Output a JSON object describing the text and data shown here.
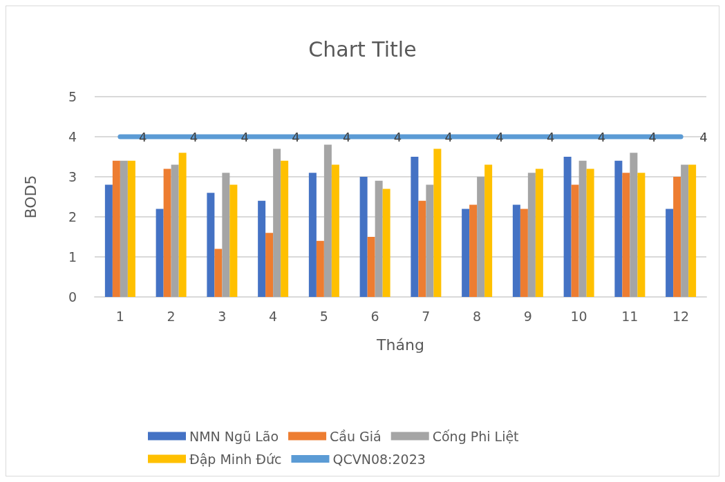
{
  "chart_data": {
    "type": "bar",
    "title": "Chart Title",
    "xlabel": "Tháng",
    "ylabel": "BOD5",
    "categories": [
      "1",
      "2",
      "3",
      "4",
      "5",
      "6",
      "7",
      "8",
      "9",
      "10",
      "11",
      "12"
    ],
    "series": [
      {
        "name": "NMN Ngũ Lão",
        "color": "#4472c4",
        "values": [
          2.8,
          2.2,
          2.6,
          2.4,
          3.1,
          3.0,
          3.5,
          2.2,
          2.3,
          3.5,
          3.4,
          2.2
        ]
      },
      {
        "name": "Cầu Giá",
        "color": "#ed7d31",
        "values": [
          3.4,
          3.2,
          1.2,
          1.6,
          1.4,
          1.5,
          2.4,
          2.3,
          2.2,
          2.8,
          3.1,
          3.0
        ]
      },
      {
        "name": "Cống Phi Liệt",
        "color": "#a5a5a5",
        "values": [
          3.4,
          3.3,
          3.1,
          3.7,
          3.8,
          2.9,
          2.8,
          3.0,
          3.1,
          3.4,
          3.6,
          3.3
        ]
      },
      {
        "name": "Đập Minh Đức",
        "color": "#ffc000",
        "values": [
          3.4,
          3.6,
          2.8,
          3.4,
          3.3,
          2.7,
          3.7,
          3.3,
          3.2,
          3.2,
          3.1,
          3.3
        ]
      },
      {
        "name": "QCVN08:2023",
        "color": "#5b9bd5",
        "type": "line",
        "marker": "none",
        "data_labels": true,
        "values": [
          4,
          4,
          4,
          4,
          4,
          4,
          4,
          4,
          4,
          4,
          4,
          4
        ]
      }
    ],
    "ylim": [
      0,
      5
    ],
    "yticks": [
      0,
      1,
      2,
      3,
      4,
      5
    ],
    "grid": "y",
    "legend": "bottom"
  }
}
